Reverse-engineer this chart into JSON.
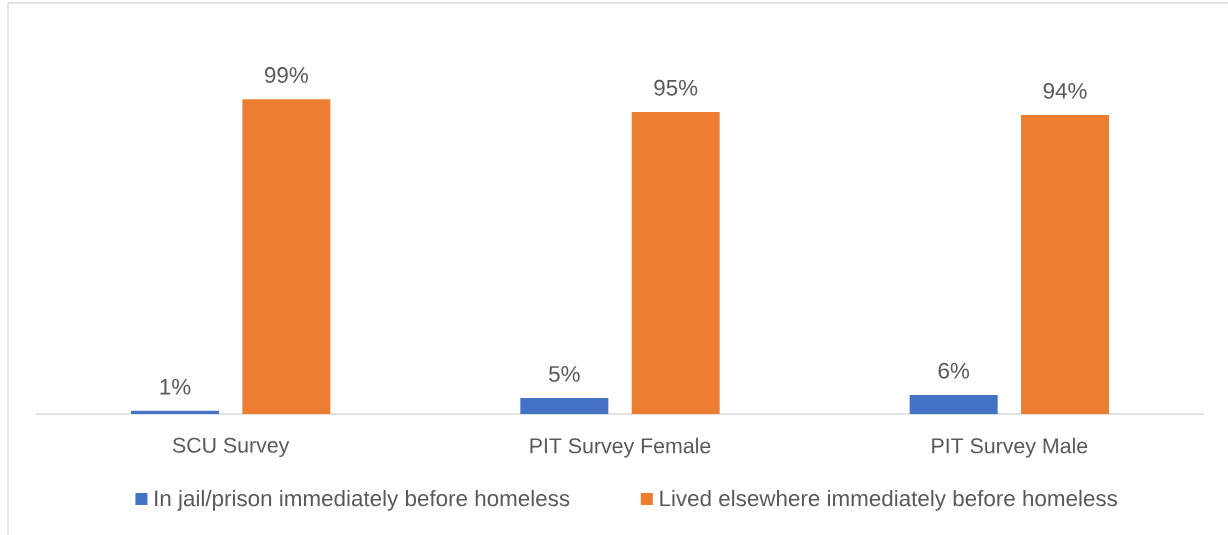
{
  "chart_data": {
    "type": "bar",
    "categories": [
      "SCU Survey",
      "PIT Survey Female",
      "PIT Survey Male"
    ],
    "series": [
      {
        "name": "In jail/prison immediately before homeless",
        "color": "#4472c4",
        "values": [
          1,
          5,
          6
        ],
        "value_labels": [
          "1%",
          "5%",
          "6%"
        ]
      },
      {
        "name": "Lived elsewhere immediately before homeless",
        "color": "#ed7d31",
        "values": [
          99,
          95,
          94
        ],
        "value_labels": [
          "99%",
          "95%",
          "94%"
        ]
      }
    ],
    "legend": "bottom"
  }
}
